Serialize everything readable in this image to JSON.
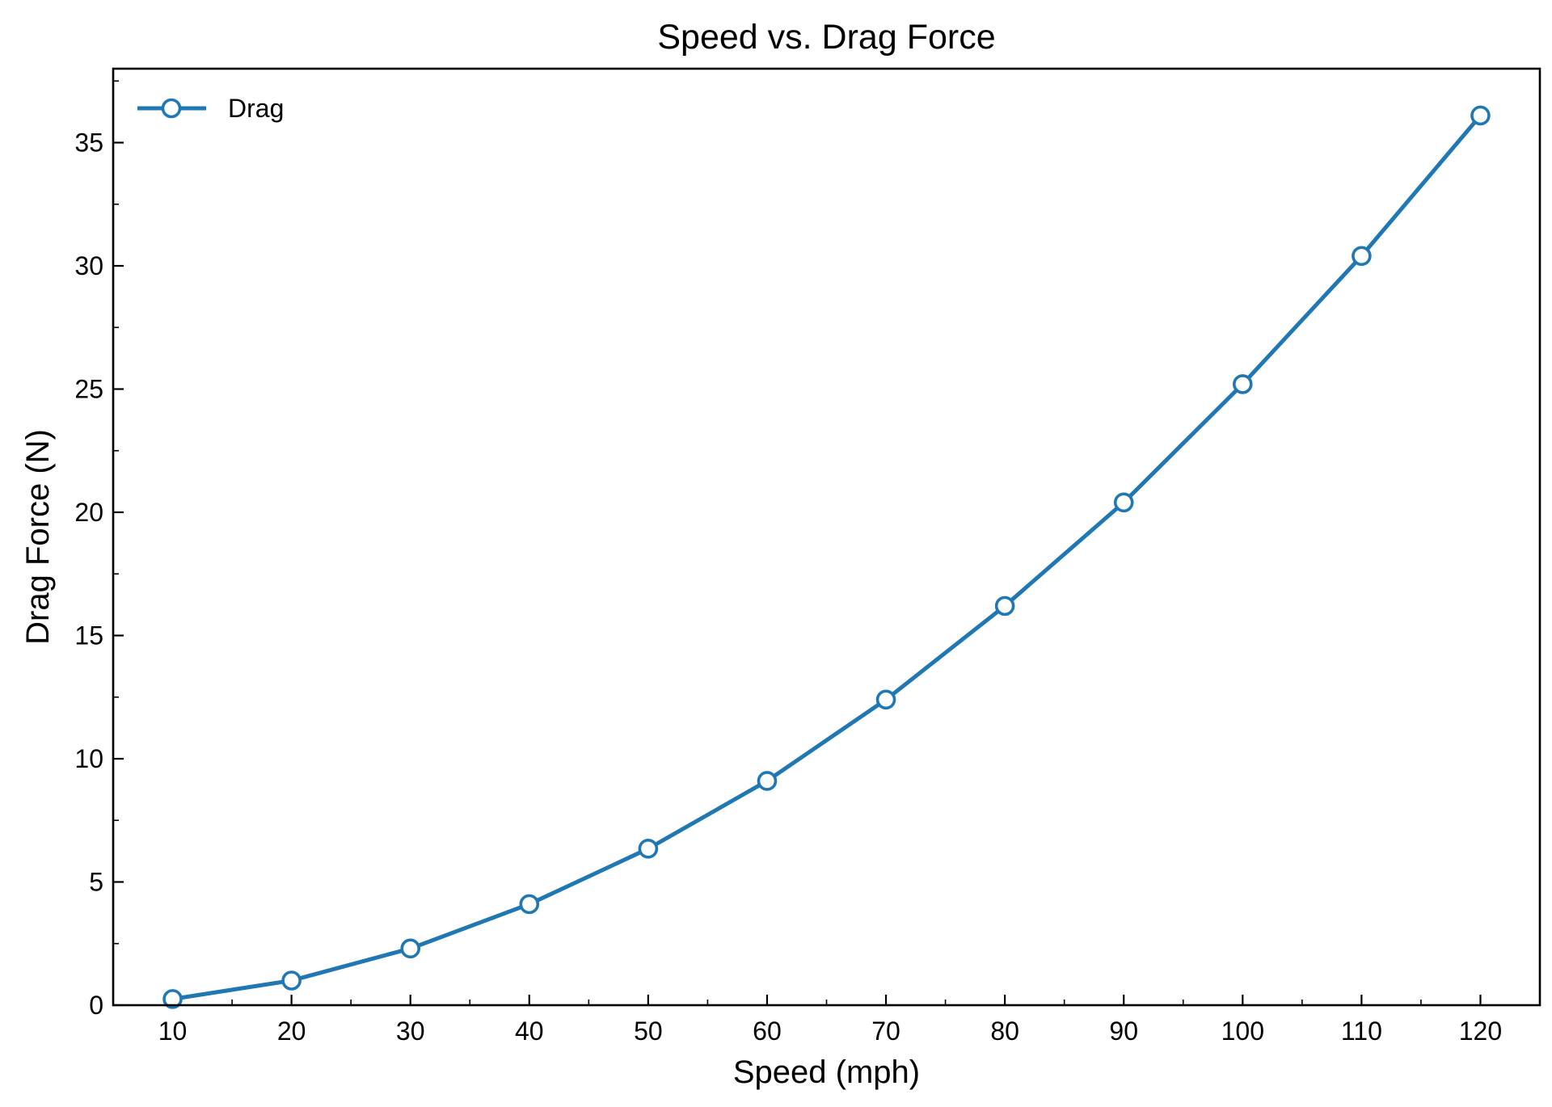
{
  "chart_data": {
    "type": "line",
    "title": "Speed vs. Drag Force",
    "xlabel": "Speed (mph)",
    "ylabel": "Drag Force (N)",
    "x": [
      10,
      20,
      30,
      40,
      50,
      60,
      70,
      80,
      90,
      100,
      110,
      120
    ],
    "series": [
      {
        "name": "Drag",
        "values": [
          0.25,
          1.0,
          2.3,
          4.1,
          6.35,
          9.1,
          12.4,
          16.2,
          20.4,
          25.2,
          30.4,
          36.1
        ],
        "color": "#1f77b4",
        "marker": "circle-open"
      }
    ],
    "xlim": [
      5,
      125
    ],
    "ylim": [
      0,
      38
    ],
    "xticks": [
      10,
      20,
      30,
      40,
      50,
      60,
      70,
      80,
      90,
      100,
      110,
      120
    ],
    "xminor_ticks": [
      15,
      25,
      35,
      45,
      55,
      65,
      75,
      85,
      95,
      105,
      115
    ],
    "yticks": [
      0,
      5,
      10,
      15,
      20,
      25,
      30,
      35
    ],
    "yminor_ticks": [
      2.5,
      7.5,
      12.5,
      17.5,
      22.5,
      27.5,
      32.5,
      37.5
    ],
    "grid": false,
    "legend": "top-left"
  }
}
